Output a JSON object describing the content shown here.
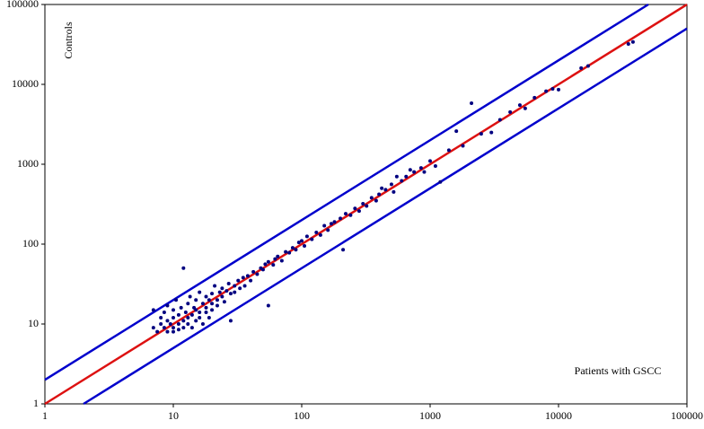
{
  "chart_data": {
    "type": "scatter",
    "xlabel": "Patients with GSCC",
    "ylabel": "Controls",
    "xscale": "log",
    "yscale": "log",
    "xlim": [
      1,
      100000
    ],
    "ylim": [
      1,
      100000
    ],
    "xticks": [
      1,
      10,
      100,
      1000,
      10000,
      100000
    ],
    "yticks": [
      1,
      10,
      100,
      1000,
      10000,
      100000
    ],
    "grid": false,
    "lines": [
      {
        "color": "#0000cc",
        "x": [
          1,
          50000
        ],
        "values": [
          2,
          100000
        ]
      },
      {
        "color": "#0000cc",
        "x": [
          2,
          100000
        ],
        "values": [
          1,
          50000
        ]
      },
      {
        "color": "#dd1111",
        "x": [
          1,
          100000
        ],
        "values": [
          1,
          100000
        ]
      }
    ],
    "series": [
      {
        "color": "#000080",
        "x": [
          7,
          7,
          7.5,
          8,
          8,
          8.5,
          8.5,
          9,
          9,
          9,
          9.5,
          10,
          10,
          10,
          10,
          10.5,
          11,
          11,
          11,
          11.5,
          12,
          12,
          12,
          12.5,
          13,
          13,
          13,
          13.5,
          14,
          14,
          14.5,
          15,
          15,
          15,
          16,
          16,
          16,
          17,
          17,
          18,
          18,
          18,
          19,
          19,
          20,
          20,
          20,
          21,
          22,
          22,
          23,
          24,
          24,
          25,
          26,
          27,
          28,
          28,
          30,
          30,
          32,
          33,
          35,
          36,
          38,
          40,
          42,
          45,
          48,
          50,
          52,
          55,
          55,
          60,
          62,
          65,
          70,
          75,
          80,
          85,
          90,
          95,
          100,
          105,
          110,
          120,
          130,
          140,
          150,
          160,
          170,
          180,
          200,
          210,
          220,
          240,
          260,
          280,
          300,
          320,
          350,
          380,
          400,
          420,
          450,
          500,
          520,
          550,
          600,
          650,
          700,
          750,
          850,
          900,
          1000,
          1100,
          1200,
          1400,
          1600,
          1800,
          2100,
          2500,
          3000,
          3500,
          4200,
          5000,
          5500,
          6500,
          8000,
          9000,
          10000,
          15000,
          17000,
          35000,
          38000
        ],
        "values": [
          15,
          9,
          8,
          12,
          10,
          9,
          14,
          8,
          11,
          17,
          10,
          9,
          12,
          15,
          8,
          20,
          10,
          13,
          8.5,
          16,
          11,
          9,
          50,
          14,
          12,
          18,
          10,
          22,
          13,
          9,
          16,
          15,
          20,
          11,
          14,
          25,
          12,
          18,
          10,
          16,
          22,
          14,
          20,
          12,
          18,
          24,
          15,
          30,
          20,
          17,
          25,
          22,
          28,
          19,
          26,
          32,
          24,
          11,
          30,
          25,
          35,
          28,
          38,
          30,
          40,
          35,
          45,
          42,
          50,
          48,
          56,
          17,
          60,
          55,
          65,
          70,
          62,
          80,
          78,
          90,
          85,
          105,
          110,
          95,
          125,
          115,
          140,
          130,
          170,
          150,
          180,
          190,
          210,
          85,
          240,
          230,
          280,
          260,
          320,
          300,
          380,
          350,
          420,
          500,
          480,
          560,
          450,
          700,
          620,
          700,
          850,
          800,
          900,
          800,
          1100,
          950,
          600,
          1500,
          2600,
          1700,
          5800,
          2400,
          2500,
          3600,
          4500,
          5500,
          5000,
          6800,
          8200,
          8800,
          8600,
          16000,
          17000,
          32000,
          34000
        ]
      }
    ]
  }
}
